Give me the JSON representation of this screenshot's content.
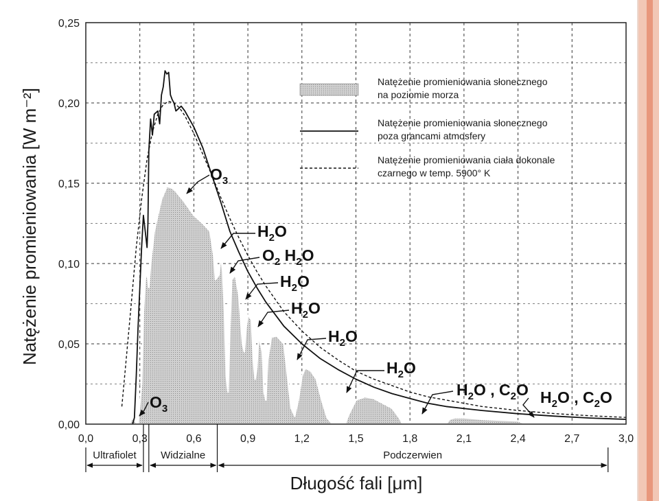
{
  "chart_data": {
    "type": "area",
    "xlabel": "Długość fali [μm]",
    "ylabel": "Natężenie promieniowania  [W m⁻²]",
    "xlim": [
      0,
      3.0
    ],
    "ylim": [
      0,
      0.25
    ],
    "x_ticks": [
      "0,0",
      "0,3",
      "0,6",
      "0,9",
      "1,2",
      "1,5",
      "1,8",
      "2,1",
      "2,4",
      "2,7",
      "3,0"
    ],
    "y_ticks": [
      "0,00",
      "0,05",
      "0,10",
      "0,15",
      "0,20",
      "0,25"
    ],
    "grid": true,
    "legend": {
      "placement": "top-right",
      "entries": [
        {
          "text": [
            "Natężenie promieniowania słonecznego",
            "na poziomie morza"
          ],
          "style": "shaded-area"
        },
        {
          "text": [
            "Natężenie promieniowania słonecznego",
            "poza grancami atmosfery"
          ],
          "style": "solid"
        },
        {
          "text": [
            "Natężenie promieniowania ciała dokonale",
            "czarnego w temp. 5900° K"
          ],
          "style": "dashed"
        }
      ]
    },
    "regions": [
      {
        "label": "Ultrafiolet",
        "from": 0.0,
        "to": 0.32
      },
      {
        "label": "Widzialne",
        "from": 0.35,
        "to": 0.73
      },
      {
        "label": "Podczerwien",
        "from": 0.73,
        "to": 2.9
      }
    ],
    "annotations": [
      {
        "text": "O",
        "sub": "3"
      },
      {
        "text": "O",
        "sub": "3"
      },
      {
        "text": "H",
        "sub": "2",
        "text2": "O"
      },
      {
        "text": "O",
        "sub": "2",
        "text2": " H",
        "sub2": "2",
        "text3": "O"
      },
      {
        "text": "H",
        "sub": "2",
        "text2": "O"
      },
      {
        "text": "H",
        "sub": "2",
        "text2": "O"
      },
      {
        "text": "H",
        "sub": "2",
        "text2": "O"
      },
      {
        "text": "H",
        "sub": "2",
        "text2": "O"
      },
      {
        "text": "H",
        "sub": "2",
        "text2": "O , C",
        "sub2": "2",
        "text3": "O"
      },
      {
        "text": "H",
        "sub": "2",
        "text2": "O , C",
        "sub2": "2",
        "text3": "O"
      }
    ],
    "series": [
      {
        "name": "Natężenie promieniowania słonecznego na poziomie morza",
        "style": "shaded-area",
        "points": [
          [
            0.24,
            0.0
          ],
          [
            0.26,
            0.004
          ],
          [
            0.28,
            0.001
          ],
          [
            0.29,
            0.0
          ],
          [
            0.31,
            0.025
          ],
          [
            0.32,
            0.07
          ],
          [
            0.33,
            0.09
          ],
          [
            0.34,
            0.095
          ],
          [
            0.35,
            0.085
          ],
          [
            0.36,
            0.1
          ],
          [
            0.38,
            0.12
          ],
          [
            0.4,
            0.13
          ],
          [
            0.42,
            0.14
          ],
          [
            0.45,
            0.148
          ],
          [
            0.48,
            0.147
          ],
          [
            0.5,
            0.145
          ],
          [
            0.55,
            0.138
          ],
          [
            0.6,
            0.13
          ],
          [
            0.65,
            0.125
          ],
          [
            0.69,
            0.12
          ],
          [
            0.71,
            0.105
          ],
          [
            0.72,
            0.09
          ],
          [
            0.74,
            0.093
          ],
          [
            0.75,
            0.105
          ],
          [
            0.76,
            0.095
          ],
          [
            0.77,
            0.07
          ],
          [
            0.78,
            0.03
          ],
          [
            0.79,
            0.02
          ],
          [
            0.8,
            0.06
          ],
          [
            0.81,
            0.09
          ],
          [
            0.83,
            0.093
          ],
          [
            0.85,
            0.08
          ],
          [
            0.87,
            0.05
          ],
          [
            0.88,
            0.045
          ],
          [
            0.89,
            0.06
          ],
          [
            0.9,
            0.068
          ],
          [
            0.92,
            0.065
          ],
          [
            0.93,
            0.04
          ],
          [
            0.94,
            0.028
          ],
          [
            0.95,
            0.035
          ],
          [
            0.96,
            0.055
          ],
          [
            0.98,
            0.045
          ],
          [
            0.99,
            0.02
          ],
          [
            1.0,
            0.015
          ],
          [
            1.01,
            0.04
          ],
          [
            1.03,
            0.054
          ],
          [
            1.06,
            0.055
          ],
          [
            1.1,
            0.05
          ],
          [
            1.12,
            0.03
          ],
          [
            1.14,
            0.01
          ],
          [
            1.16,
            0.005
          ],
          [
            1.18,
            0.015
          ],
          [
            1.2,
            0.03
          ],
          [
            1.22,
            0.035
          ],
          [
            1.25,
            0.033
          ],
          [
            1.28,
            0.028
          ],
          [
            1.31,
            0.015
          ],
          [
            1.34,
            0.004
          ],
          [
            1.37,
            0.0
          ],
          [
            1.44,
            0.0
          ],
          [
            1.46,
            0.006
          ],
          [
            1.5,
            0.015
          ],
          [
            1.55,
            0.017
          ],
          [
            1.6,
            0.016
          ],
          [
            1.65,
            0.013
          ],
          [
            1.7,
            0.01
          ],
          [
            1.74,
            0.004
          ],
          [
            1.76,
            0.0
          ],
          [
            2.0,
            0.0
          ],
          [
            2.02,
            0.003
          ],
          [
            2.05,
            0.004
          ],
          [
            2.1,
            0.004
          ],
          [
            2.2,
            0.003
          ],
          [
            2.3,
            0.0025
          ],
          [
            2.4,
            0.002
          ],
          [
            2.45,
            0.0
          ]
        ]
      },
      {
        "name": "Natężenie promieniowania słonecznego poza grancami atmosfery",
        "style": "solid",
        "points": [
          [
            0.26,
            0.0
          ],
          [
            0.27,
            0.004
          ],
          [
            0.28,
            0.03
          ],
          [
            0.29,
            0.06
          ],
          [
            0.3,
            0.085
          ],
          [
            0.31,
            0.11
          ],
          [
            0.32,
            0.13
          ],
          [
            0.33,
            0.12
          ],
          [
            0.34,
            0.11
          ],
          [
            0.345,
            0.125
          ],
          [
            0.35,
            0.17
          ],
          [
            0.36,
            0.19
          ],
          [
            0.37,
            0.18
          ],
          [
            0.38,
            0.193
          ],
          [
            0.4,
            0.195
          ],
          [
            0.41,
            0.187
          ],
          [
            0.42,
            0.205
          ],
          [
            0.43,
            0.21
          ],
          [
            0.44,
            0.22
          ],
          [
            0.45,
            0.218
          ],
          [
            0.46,
            0.219
          ],
          [
            0.47,
            0.205
          ],
          [
            0.48,
            0.202
          ],
          [
            0.49,
            0.2
          ],
          [
            0.5,
            0.195
          ],
          [
            0.51,
            0.196
          ],
          [
            0.53,
            0.198
          ],
          [
            0.55,
            0.195
          ],
          [
            0.6,
            0.185
          ],
          [
            0.65,
            0.172
          ],
          [
            0.7,
            0.155
          ],
          [
            0.75,
            0.138
          ],
          [
            0.8,
            0.12
          ],
          [
            0.85,
            0.107
          ],
          [
            0.9,
            0.095
          ],
          [
            0.95,
            0.085
          ],
          [
            1.0,
            0.076
          ],
          [
            1.1,
            0.061
          ],
          [
            1.2,
            0.05
          ],
          [
            1.3,
            0.041
          ],
          [
            1.4,
            0.034
          ],
          [
            1.5,
            0.028
          ],
          [
            1.6,
            0.023
          ],
          [
            1.7,
            0.019
          ],
          [
            1.8,
            0.016
          ],
          [
            1.9,
            0.013
          ],
          [
            2.0,
            0.011
          ],
          [
            2.2,
            0.0085
          ],
          [
            2.4,
            0.0065
          ],
          [
            2.6,
            0.005
          ],
          [
            2.8,
            0.0038
          ],
          [
            3.0,
            0.003
          ]
        ]
      },
      {
        "name": "Natężenie promieniowania ciała dokonale czarnego w temp. 5900° K",
        "style": "dashed",
        "points": [
          [
            0.2,
            0.011
          ],
          [
            0.22,
            0.035
          ],
          [
            0.25,
            0.072
          ],
          [
            0.28,
            0.11
          ],
          [
            0.31,
            0.14
          ],
          [
            0.34,
            0.165
          ],
          [
            0.37,
            0.182
          ],
          [
            0.4,
            0.193
          ],
          [
            0.43,
            0.199
          ],
          [
            0.46,
            0.201
          ],
          [
            0.49,
            0.2
          ],
          [
            0.52,
            0.197
          ],
          [
            0.55,
            0.192
          ],
          [
            0.6,
            0.181
          ],
          [
            0.65,
            0.168
          ],
          [
            0.7,
            0.155
          ],
          [
            0.75,
            0.141
          ],
          [
            0.8,
            0.128
          ],
          [
            0.85,
            0.116
          ],
          [
            0.9,
            0.105
          ],
          [
            0.95,
            0.095
          ],
          [
            1.0,
            0.086
          ],
          [
            1.1,
            0.07
          ],
          [
            1.2,
            0.058
          ],
          [
            1.3,
            0.048
          ],
          [
            1.4,
            0.04
          ],
          [
            1.5,
            0.033
          ],
          [
            1.6,
            0.028
          ],
          [
            1.7,
            0.024
          ],
          [
            1.8,
            0.02
          ],
          [
            1.9,
            0.017
          ],
          [
            2.0,
            0.015
          ],
          [
            2.2,
            0.011
          ],
          [
            2.4,
            0.0085
          ],
          [
            2.6,
            0.0066
          ],
          [
            2.8,
            0.0052
          ],
          [
            3.0,
            0.0042
          ]
        ]
      }
    ]
  }
}
